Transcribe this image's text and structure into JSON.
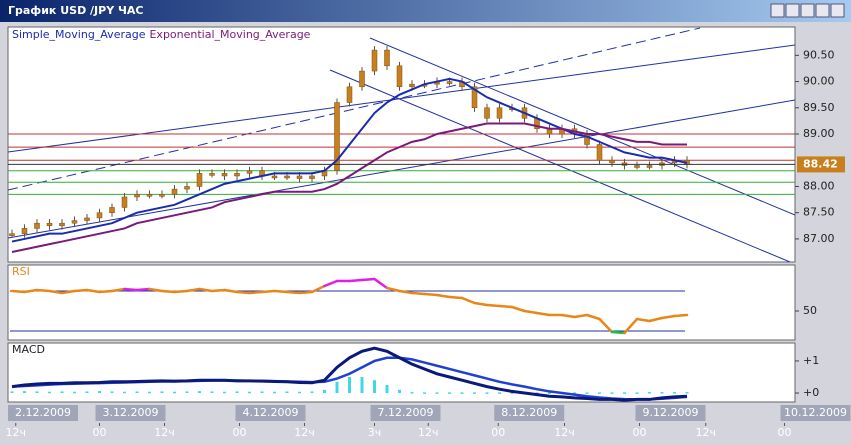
{
  "window": {
    "title": "График USD /JPY ЧАС"
  },
  "time_axis": {
    "xlim": [
      0,
      66
    ],
    "dates": [
      {
        "value": 0,
        "label": "2.12.2009"
      },
      {
        "value": 7,
        "label": "3.12.2009"
      },
      {
        "value": 18.2,
        "label": "4.12.2009"
      },
      {
        "value": 29,
        "label": "7.12.2009"
      },
      {
        "value": 38.9,
        "label": "8.12.2009"
      },
      {
        "value": 50.2,
        "label": "9.12.2009"
      },
      {
        "value": 61.8,
        "label": "10.12.2009"
      }
    ],
    "hours": [
      {
        "value": 0.3,
        "label": "12ч"
      },
      {
        "value": 7,
        "label": "00"
      },
      {
        "value": 12.2,
        "label": "12ч"
      },
      {
        "value": 18.2,
        "label": "00"
      },
      {
        "value": 23.4,
        "label": "12ч"
      },
      {
        "value": 29,
        "label": "3ч"
      },
      {
        "value": 33.3,
        "label": "12ч"
      },
      {
        "value": 38.9,
        "label": "00"
      },
      {
        "value": 44.2,
        "label": "12ч"
      },
      {
        "value": 50.2,
        "label": "00"
      },
      {
        "value": 55.5,
        "label": "12ч"
      },
      {
        "value": 61.8,
        "label": "00"
      }
    ]
  },
  "chart_data": [
    {
      "type": "candlestick",
      "candle_color": "#c8801e",
      "close": [
        87.1,
        87.2,
        87.3,
        87.25,
        87.3,
        87.35,
        87.4,
        87.5,
        87.6,
        87.8,
        87.85,
        87.85,
        87.85,
        87.95,
        88.0,
        88.25,
        88.25,
        88.2,
        88.25,
        88.3,
        88.2,
        88.2,
        88.2,
        88.15,
        88.2,
        88.3,
        89.6,
        89.9,
        90.2,
        90.6,
        90.3,
        89.9,
        89.95,
        89.95,
        90.0,
        90.0,
        89.9,
        89.5,
        89.3,
        89.5,
        89.5,
        89.3,
        89.1,
        89.0,
        89.1,
        89.0,
        88.8,
        88.5,
        88.45,
        88.4,
        88.4,
        88.4,
        88.45,
        88.5,
        88.42
      ],
      "series": [
        {
          "name": "Simple_Moving_Average",
          "color": "#1a2bb0",
          "values": [
            86.95,
            87.0,
            87.05,
            87.1,
            87.1,
            87.15,
            87.2,
            87.25,
            87.3,
            87.4,
            87.5,
            87.55,
            87.6,
            87.65,
            87.75,
            87.85,
            87.95,
            88.05,
            88.1,
            88.15,
            88.2,
            88.25,
            88.25,
            88.25,
            88.25,
            88.3,
            88.5,
            88.8,
            89.1,
            89.4,
            89.6,
            89.75,
            89.85,
            89.95,
            90.0,
            90.05,
            90.0,
            89.85,
            89.7,
            89.6,
            89.5,
            89.4,
            89.3,
            89.2,
            89.1,
            89.0,
            88.95,
            88.85,
            88.75,
            88.65,
            88.6,
            88.55,
            88.55,
            88.5,
            88.45
          ]
        },
        {
          "name": "Exponential_Moving_Average",
          "color": "#7a1a7a",
          "values": [
            86.75,
            86.8,
            86.85,
            86.9,
            86.95,
            87.0,
            87.05,
            87.1,
            87.15,
            87.2,
            87.3,
            87.35,
            87.4,
            87.45,
            87.5,
            87.55,
            87.6,
            87.7,
            87.75,
            87.8,
            87.85,
            87.9,
            87.9,
            87.9,
            87.9,
            87.95,
            88.05,
            88.2,
            88.35,
            88.5,
            88.65,
            88.75,
            88.85,
            88.9,
            89.0,
            89.05,
            89.1,
            89.15,
            89.2,
            89.2,
            89.2,
            89.2,
            89.15,
            89.1,
            89.1,
            89.05,
            89.0,
            89.0,
            88.95,
            88.9,
            88.85,
            88.85,
            88.8,
            88.8,
            88.8
          ]
        }
      ],
      "ylim": [
        86.56,
        91.04
      ],
      "yticks": [
        {
          "value": 87,
          "label": "87.00"
        },
        {
          "value": 87.5,
          "label": "87.50"
        },
        {
          "value": 88,
          "label": "88.00"
        },
        {
          "value": 89,
          "label": "89.00"
        },
        {
          "value": 89.5,
          "label": "89.50"
        },
        {
          "value": 90,
          "label": "90.00"
        },
        {
          "value": 90.5,
          "label": "90.50"
        }
      ],
      "levels": [
        {
          "value": 89.0,
          "color": "#c03030"
        },
        {
          "value": 88.75,
          "color": "#c03030"
        },
        {
          "value": 88.5,
          "color": "#c03030"
        },
        {
          "value": 88.3,
          "color": "#30b030"
        },
        {
          "value": 88.08,
          "color": "#30b030"
        },
        {
          "value": 87.85,
          "color": "#30b030"
        }
      ],
      "current": 88.42
    },
    {
      "type": "rsi",
      "title": "RSI",
      "color": "#e8861a",
      "high_color": "#e020e0",
      "low_color": "#20c040",
      "values": [
        70,
        69,
        71,
        70,
        68,
        70,
        71,
        69,
        70,
        72,
        71,
        72,
        70,
        69,
        70,
        72,
        70,
        71,
        69,
        68,
        69,
        70,
        69,
        68,
        69,
        75,
        80,
        80,
        81,
        82,
        73,
        70,
        68,
        67,
        66,
        64,
        63,
        58,
        56,
        55,
        54,
        50,
        48,
        46,
        46,
        44,
        46,
        42,
        29,
        28,
        42,
        40,
        43,
        45,
        46
      ],
      "levels": [
        70,
        30
      ],
      "ylim": [
        21,
        96
      ],
      "yticks": [
        50
      ]
    },
    {
      "type": "macd",
      "title": "MACD",
      "color": "#0a1a7a",
      "signal_color": "#2040d0",
      "histogram_color": "#40d8e8",
      "values": [
        0.2,
        0.25,
        0.28,
        0.3,
        0.3,
        0.32,
        0.32,
        0.33,
        0.35,
        0.35,
        0.36,
        0.37,
        0.38,
        0.37,
        0.38,
        0.4,
        0.4,
        0.4,
        0.38,
        0.38,
        0.37,
        0.36,
        0.35,
        0.33,
        0.32,
        0.4,
        0.8,
        1.1,
        1.3,
        1.4,
        1.3,
        1.1,
        0.9,
        0.75,
        0.6,
        0.5,
        0.4,
        0.3,
        0.2,
        0.12,
        0.05,
        0.0,
        -0.05,
        -0.1,
        -0.12,
        -0.15,
        -0.17,
        -0.2,
        -0.2,
        -0.22,
        -0.2,
        -0.2,
        -0.15,
        -0.12,
        -0.1
      ],
      "signal": [
        0.2,
        0.22,
        0.24,
        0.26,
        0.28,
        0.29,
        0.3,
        0.31,
        0.32,
        0.33,
        0.34,
        0.35,
        0.36,
        0.36,
        0.37,
        0.38,
        0.39,
        0.39,
        0.39,
        0.38,
        0.38,
        0.37,
        0.36,
        0.35,
        0.34,
        0.35,
        0.45,
        0.6,
        0.8,
        1.0,
        1.1,
        1.1,
        1.05,
        0.95,
        0.85,
        0.75,
        0.65,
        0.55,
        0.45,
        0.35,
        0.27,
        0.2,
        0.12,
        0.05,
        0.0,
        -0.05,
        -0.1,
        -0.14,
        -0.17,
        -0.19,
        -0.2,
        -0.2,
        -0.18,
        -0.15,
        -0.12
      ],
      "histogram": [
        0.05,
        0.06,
        0.05,
        0.04,
        0.05,
        0.04,
        0.05,
        0.06,
        0.05,
        0.04,
        0.05,
        0.04,
        0.05,
        0.04,
        0.05,
        0.06,
        0.05,
        0.04,
        0.05,
        0.04,
        0.05,
        0.04,
        0.05,
        0.04,
        0.05,
        0.1,
        0.35,
        0.5,
        0.5,
        0.4,
        0.25,
        0.1,
        0.03,
        0.02,
        0.02,
        0.02,
        0.02,
        0.02,
        0.02,
        0.02,
        0.02,
        0.02,
        0.02,
        0.02,
        0.02,
        0.02,
        0.02,
        0.02,
        0.02,
        0.02,
        0.02,
        0.03,
        0.03,
        0.03,
        0.03
      ],
      "ylim": [
        -0.28,
        1.56
      ],
      "yticks": [
        {
          "value": 1,
          "label": "+1"
        },
        {
          "value": 0,
          "label": "+0"
        }
      ]
    }
  ]
}
